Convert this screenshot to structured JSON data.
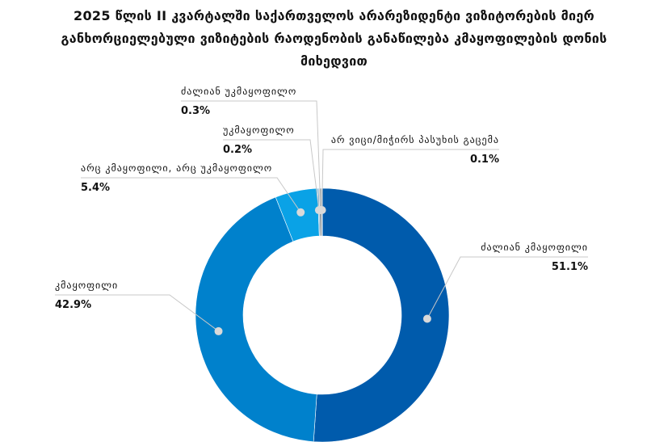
{
  "title_lines": [
    "2025 წლის II კვარტალში საქართველოს არარეზიდენტი ვიზიტორების მიერ",
    "განხორციელებული ვიზიტების რაოდენობის განაწილება კმაყოფილების დონის",
    "მიხედვით"
  ],
  "chart_data": {
    "type": "pie",
    "donut": true,
    "slices": [
      {
        "label": "ძალიან კმაყოფილი",
        "value": 51.1,
        "value_label": "51.1%",
        "color": "#005BAC"
      },
      {
        "label": "კმაყოფილი",
        "value": 42.9,
        "value_label": "42.9%",
        "color": "#0081CC"
      },
      {
        "label": "არც კმაყოფილი, არც უკმაყოფილო",
        "value": 5.4,
        "value_label": "5.4%",
        "color": "#0AA2E6"
      },
      {
        "label": "უკმაყოფილო",
        "value": 0.2,
        "value_label": "0.2%",
        "color": "#8AB3CF"
      },
      {
        "label": "ძალიან უკმაყოფილო",
        "value": 0.3,
        "value_label": "0.3%",
        "color": "#7F8A92"
      },
      {
        "label": "არ ვიცი/მიჭირს პასუხის გაცემა",
        "value": 0.1,
        "value_label": "0.1%",
        "color": "#A9B4BC"
      }
    ]
  }
}
